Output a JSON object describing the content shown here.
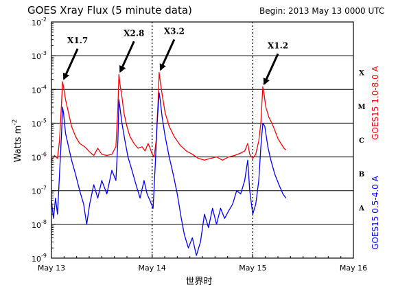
{
  "chart_data": {
    "type": "line",
    "title": "GOES Xray Flux (5 minute data)",
    "begin_label": "Begin:  2013 May 13 0000 UTC",
    "ylabel": "Watts m",
    "ylabel_sup": "-2",
    "xlabel": "世界时",
    "x_ticks": [
      "May 13",
      "May 14",
      "May 15",
      "May 16"
    ],
    "y_ticks": [
      {
        "base": "10",
        "exp": "-2"
      },
      {
        "base": "10",
        "exp": "-3"
      },
      {
        "base": "10",
        "exp": "-4"
      },
      {
        "base": "10",
        "exp": "-5"
      },
      {
        "base": "10",
        "exp": "-6"
      },
      {
        "base": "10",
        "exp": "-7"
      },
      {
        "base": "10",
        "exp": "-8"
      },
      {
        "base": "10",
        "exp": "-9"
      }
    ],
    "xlim_days": [
      0,
      3
    ],
    "ylim_log10": [
      -9,
      -2
    ],
    "y_scale": "log",
    "class_labels": [
      "X",
      "M",
      "C",
      "B",
      "A"
    ],
    "flare_annotations": [
      {
        "label": "X1.7",
        "day": 0.11,
        "flux": 0.00017
      },
      {
        "label": "X2.8",
        "day": 0.67,
        "flux": 0.00028
      },
      {
        "label": "X3.2",
        "day": 1.07,
        "flux": 0.00032
      },
      {
        "label": "X1.2",
        "day": 2.1,
        "flux": 0.00012
      }
    ],
    "series": [
      {
        "name": "GOES15 1.0-8.0 A",
        "color": "#ff0000",
        "points": [
          [
            0.0,
            8e-07
          ],
          [
            0.03,
            1.1e-06
          ],
          [
            0.06,
            9e-07
          ],
          [
            0.08,
            3e-06
          ],
          [
            0.1,
            4e-05
          ],
          [
            0.11,
            0.00017
          ],
          [
            0.12,
            0.00012
          ],
          [
            0.14,
            5e-05
          ],
          [
            0.17,
            2e-05
          ],
          [
            0.2,
            8e-06
          ],
          [
            0.24,
            4e-06
          ],
          [
            0.28,
            2.5e-06
          ],
          [
            0.33,
            2e-06
          ],
          [
            0.38,
            1.4e-06
          ],
          [
            0.42,
            1.1e-06
          ],
          [
            0.46,
            1.8e-06
          ],
          [
            0.5,
            1.2e-06
          ],
          [
            0.55,
            1.1e-06
          ],
          [
            0.6,
            1.2e-06
          ],
          [
            0.64,
            2e-06
          ],
          [
            0.66,
            3e-05
          ],
          [
            0.67,
            0.00028
          ],
          [
            0.68,
            0.00015
          ],
          [
            0.7,
            6e-05
          ],
          [
            0.72,
            2e-05
          ],
          [
            0.75,
            8e-06
          ],
          [
            0.78,
            4e-06
          ],
          [
            0.82,
            2.5e-06
          ],
          [
            0.86,
            1.8e-06
          ],
          [
            0.9,
            2e-06
          ],
          [
            0.93,
            1.5e-06
          ],
          [
            0.96,
            2.5e-06
          ],
          [
            0.98,
            1.8e-06
          ],
          [
            1.0,
            1.2e-06
          ],
          [
            1.02,
            1e-06
          ],
          [
            1.04,
            3e-06
          ],
          [
            1.06,
            5e-05
          ],
          [
            1.07,
            0.00032
          ],
          [
            1.08,
            0.00018
          ],
          [
            1.1,
            7e-05
          ],
          [
            1.13,
            2e-05
          ],
          [
            1.17,
            8e-06
          ],
          [
            1.22,
            4e-06
          ],
          [
            1.28,
            2.2e-06
          ],
          [
            1.34,
            1.5e-06
          ],
          [
            1.4,
            1.2e-06
          ],
          [
            1.46,
            9e-07
          ],
          [
            1.52,
            8e-07
          ],
          [
            1.58,
            9e-07
          ],
          [
            1.64,
            1e-06
          ],
          [
            1.7,
            8e-07
          ],
          [
            1.76,
            1e-06
          ],
          [
            1.82,
            1.1e-06
          ],
          [
            1.88,
            1.3e-06
          ],
          [
            1.92,
            1.5e-06
          ],
          [
            1.95,
            2.5e-06
          ],
          [
            1.97,
            1.2e-06
          ],
          [
            2.0,
            9e-07
          ],
          [
            2.03,
            1.2e-06
          ],
          [
            2.06,
            3e-06
          ],
          [
            2.08,
            1e-05
          ],
          [
            2.1,
            0.00012
          ],
          [
            2.11,
            8e-05
          ],
          [
            2.13,
            3e-05
          ],
          [
            2.16,
            1.5e-05
          ],
          [
            2.19,
            1e-05
          ],
          [
            2.22,
            6e-06
          ],
          [
            2.25,
            3.5e-06
          ],
          [
            2.28,
            2.5e-06
          ],
          [
            2.31,
            1.8e-06
          ],
          [
            2.33,
            1.6e-06
          ]
        ]
      },
      {
        "name": "GOES15 0.5-4.0 A",
        "color": "#0000ff",
        "points": [
          [
            0.0,
            5e-08
          ],
          [
            0.02,
            1.5e-08
          ],
          [
            0.04,
            6e-08
          ],
          [
            0.06,
            2e-08
          ],
          [
            0.08,
            3e-07
          ],
          [
            0.1,
            5e-06
          ],
          [
            0.11,
            3e-05
          ],
          [
            0.12,
            2e-05
          ],
          [
            0.14,
            5e-06
          ],
          [
            0.17,
            2e-06
          ],
          [
            0.2,
            8e-07
          ],
          [
            0.24,
            3e-07
          ],
          [
            0.28,
            1e-07
          ],
          [
            0.32,
            4e-08
          ],
          [
            0.35,
            1e-08
          ],
          [
            0.38,
            4e-08
          ],
          [
            0.42,
            1.5e-07
          ],
          [
            0.46,
            6e-08
          ],
          [
            0.5,
            2e-07
          ],
          [
            0.55,
            8e-08
          ],
          [
            0.6,
            4e-07
          ],
          [
            0.64,
            2e-07
          ],
          [
            0.66,
            3e-06
          ],
          [
            0.67,
            5e-05
          ],
          [
            0.68,
            3e-05
          ],
          [
            0.7,
            1e-05
          ],
          [
            0.73,
            3e-06
          ],
          [
            0.76,
            1e-06
          ],
          [
            0.8,
            4e-07
          ],
          [
            0.84,
            1.5e-07
          ],
          [
            0.88,
            6e-08
          ],
          [
            0.92,
            2e-07
          ],
          [
            0.95,
            8e-08
          ],
          [
            0.98,
            5e-08
          ],
          [
            1.01,
            3e-08
          ],
          [
            1.03,
            5e-07
          ],
          [
            1.05,
            1e-05
          ],
          [
            1.07,
            8e-05
          ],
          [
            1.08,
            5e-05
          ],
          [
            1.1,
            1.5e-05
          ],
          [
            1.13,
            4e-06
          ],
          [
            1.17,
            1e-06
          ],
          [
            1.21,
            3e-07
          ],
          [
            1.25,
            8e-08
          ],
          [
            1.29,
            1.5e-08
          ],
          [
            1.32,
            5e-09
          ],
          [
            1.36,
            2e-09
          ],
          [
            1.4,
            4e-09
          ],
          [
            1.44,
            1.2e-09
          ],
          [
            1.48,
            3e-09
          ],
          [
            1.52,
            2e-08
          ],
          [
            1.56,
            8e-09
          ],
          [
            1.6,
            3e-08
          ],
          [
            1.64,
            1e-08
          ],
          [
            1.68,
            3e-08
          ],
          [
            1.72,
            1.5e-08
          ],
          [
            1.76,
            2.5e-08
          ],
          [
            1.8,
            4e-08
          ],
          [
            1.84,
            1e-07
          ],
          [
            1.88,
            8e-08
          ],
          [
            1.92,
            2e-07
          ],
          [
            1.95,
            8e-07
          ],
          [
            1.97,
            1e-07
          ],
          [
            2.0,
            2e-08
          ],
          [
            2.03,
            4e-08
          ],
          [
            2.06,
            2e-07
          ],
          [
            2.08,
            2e-06
          ],
          [
            2.1,
            1e-05
          ],
          [
            2.12,
            8e-06
          ],
          [
            2.15,
            2e-06
          ],
          [
            2.18,
            8e-07
          ],
          [
            2.22,
            3e-07
          ],
          [
            2.26,
            1.5e-07
          ],
          [
            2.3,
            8e-08
          ],
          [
            2.33,
            6e-08
          ]
        ]
      }
    ]
  }
}
